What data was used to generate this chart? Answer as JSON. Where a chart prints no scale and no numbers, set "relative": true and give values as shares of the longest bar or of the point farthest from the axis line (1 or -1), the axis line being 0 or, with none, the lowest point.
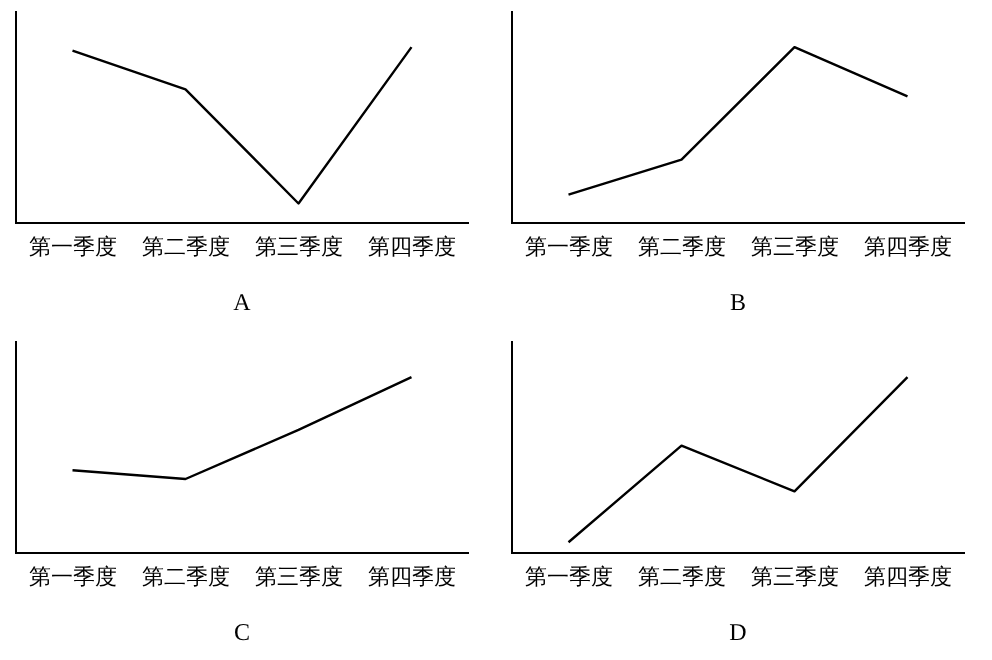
{
  "chart_data": [
    {
      "type": "line",
      "xlabel": "A",
      "categories": [
        "第一季度",
        "第二季度",
        "第三季度",
        "第四季度"
      ],
      "relative": true,
      "tick_labels": "x",
      "marker": "none",
      "grid": false,
      "legend": false,
      "series": [
        {
          "color": "#000000",
          "values": [
            0.98,
            0.76,
            0.11,
            1
          ]
        }
      ]
    },
    {
      "type": "line",
      "xlabel": "B",
      "categories": [
        "第一季度",
        "第二季度",
        "第三季度",
        "第四季度"
      ],
      "relative": true,
      "tick_labels": "x",
      "marker": "none",
      "grid": false,
      "legend": false,
      "series": [
        {
          "color": "#000000",
          "values": [
            0.16,
            0.36,
            1,
            0.72
          ]
        }
      ]
    },
    {
      "type": "line",
      "xlabel": "C",
      "categories": [
        "第一季度",
        "第二季度",
        "第三季度",
        "第四季度"
      ],
      "relative": true,
      "tick_labels": "x",
      "marker": "none",
      "grid": false,
      "legend": false,
      "series": [
        {
          "color": "#000000",
          "values": [
            0.47,
            0.42,
            0.7,
            1
          ]
        }
      ]
    },
    {
      "type": "line",
      "xlabel": "D",
      "categories": [
        "第一季度",
        "第二季度",
        "第三季度",
        "第四季度"
      ],
      "relative": true,
      "tick_labels": "x",
      "marker": "none",
      "grid": false,
      "legend": false,
      "series": [
        {
          "color": "#000000",
          "values": [
            0.06,
            0.61,
            0.35,
            1
          ]
        }
      ]
    }
  ]
}
